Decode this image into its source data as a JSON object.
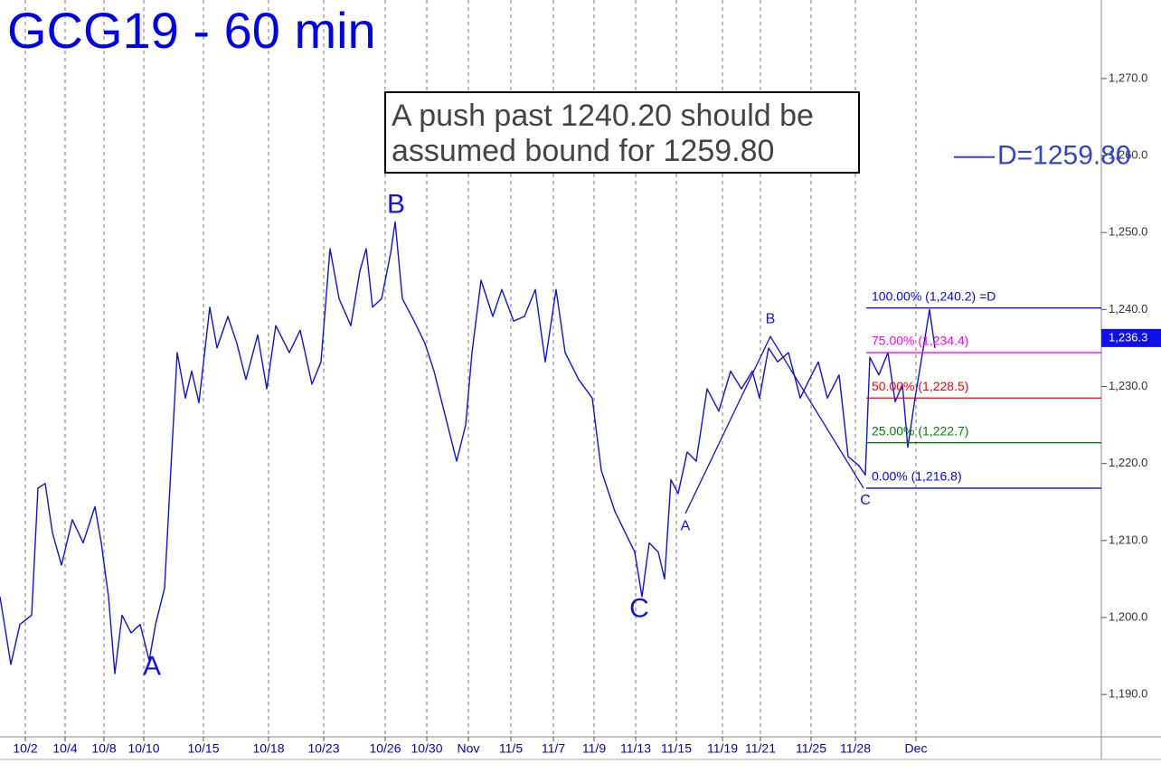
{
  "chart_data": {
    "type": "line",
    "title": "GCG19 - 60 min",
    "note": [
      "A push past 1240.20 should be",
      "assumed bound for 1259.80"
    ],
    "xlim": [
      0,
      121.8
    ],
    "ylim": [
      1184.5,
      1280.2
    ],
    "xticks": [
      {
        "value": 2.8,
        "label": "10/2"
      },
      {
        "value": 7.2,
        "label": "10/4"
      },
      {
        "value": 11.5,
        "label": "10/8"
      },
      {
        "value": 15.9,
        "label": "10/10"
      },
      {
        "value": 22.5,
        "label": "10/15"
      },
      {
        "value": 29.7,
        "label": "10/18"
      },
      {
        "value": 35.8,
        "label": "10/23"
      },
      {
        "value": 42.6,
        "label": "10/26"
      },
      {
        "value": 47.2,
        "label": "10/30"
      },
      {
        "value": 51.8,
        "label": "Nov"
      },
      {
        "value": 56.5,
        "label": "11/5"
      },
      {
        "value": 61.2,
        "label": "11/7"
      },
      {
        "value": 65.7,
        "label": "11/9"
      },
      {
        "value": 70.3,
        "label": "11/13"
      },
      {
        "value": 74.8,
        "label": "11/15"
      },
      {
        "value": 79.9,
        "label": "11/19"
      },
      {
        "value": 84.1,
        "label": "11/21"
      },
      {
        "value": 89.7,
        "label": "11/25"
      },
      {
        "value": 94.6,
        "label": "11/28"
      },
      {
        "value": 101.3,
        "label": "Dec"
      }
    ],
    "yticks": [
      {
        "value": 1190,
        "label": "1,190.0"
      },
      {
        "value": 1200,
        "label": "1,200.0"
      },
      {
        "value": 1210,
        "label": "1,210.0"
      },
      {
        "value": 1220,
        "label": "1,220.0"
      },
      {
        "value": 1230,
        "label": "1,230.0"
      },
      {
        "value": 1240,
        "label": "1,240.0"
      },
      {
        "value": 1250,
        "label": "1,250.0"
      },
      {
        "value": 1260,
        "label": "1,260.0"
      },
      {
        "value": 1270,
        "label": "1,270.0"
      }
    ],
    "grid": true,
    "series": [
      {
        "color": "#1010e8",
        "x": [
          0,
          1.2,
          2.2,
          3.5,
          4.2,
          5.0,
          5.8,
          6.8,
          8.0,
          9.2,
          10.5,
          11.2,
          12.0,
          12.7,
          13.5,
          14.5,
          15.5,
          16.5,
          17.2,
          18.2,
          19.0,
          19.6,
          20.5,
          21.2,
          22.0,
          23.2,
          24.0,
          25.2,
          26.2,
          27.2,
          28.5,
          29.5,
          30.5,
          32.0,
          33.2,
          34.5,
          35.5,
          36.5,
          37.5,
          38.8,
          39.8,
          40.5,
          41.2,
          42.2,
          43.2,
          43.7,
          44.5,
          45.8,
          47.0,
          48.0,
          49.5,
          50.5,
          51.5,
          52.2,
          53.2,
          54.5,
          55.5,
          56.8,
          58.0,
          59.2,
          60.3,
          61.5,
          62.5,
          64.0,
          65.5,
          66.5,
          68.0,
          69.2,
          70.2,
          71.0,
          71.8,
          72.8,
          73.5,
          74.2,
          75.0,
          76.0,
          77.0,
          78.2,
          79.5,
          80.8,
          82.0,
          83.2,
          84.0,
          85.0,
          86.0,
          87.2,
          88.5,
          89.5,
          90.5,
          91.5,
          92.8,
          93.8,
          95.0,
          95.7,
          96.2,
          97.2,
          98.2,
          99.0,
          99.8,
          100.4,
          101.2,
          102.2,
          102.8,
          103.4
        ],
        "values": [
          1202.7,
          1193.9,
          1199.1,
          1200.3,
          1216.8,
          1217.4,
          1211.0,
          1206.8,
          1212.7,
          1209.7,
          1214.4,
          1209.7,
          1202.7,
          1192.7,
          1200.3,
          1198.0,
          1199.1,
          1194.4,
          1199.1,
          1203.8,
          1221.5,
          1234.4,
          1228.5,
          1232.0,
          1227.9,
          1240.3,
          1235.0,
          1239.1,
          1235.6,
          1230.9,
          1236.7,
          1229.7,
          1237.9,
          1234.4,
          1237.3,
          1230.3,
          1233.2,
          1247.9,
          1241.4,
          1237.9,
          1245.0,
          1247.9,
          1240.3,
          1241.4,
          1247.3,
          1251.4,
          1241.4,
          1238.5,
          1235.6,
          1232.0,
          1225.0,
          1220.3,
          1225.0,
          1234.4,
          1243.8,
          1239.1,
          1242.6,
          1238.5,
          1239.1,
          1242.6,
          1233.2,
          1242.6,
          1234.4,
          1230.9,
          1228.5,
          1219.1,
          1213.8,
          1210.9,
          1208.5,
          1202.7,
          1209.7,
          1208.5,
          1205.0,
          1217.9,
          1216.1,
          1221.5,
          1220.3,
          1229.7,
          1226.8,
          1232.0,
          1229.7,
          1232.0,
          1228.5,
          1235.0,
          1233.2,
          1234.4,
          1228.5,
          1230.9,
          1233.2,
          1228.5,
          1231.5,
          1220.9,
          1219.7,
          1218.5,
          1233.8,
          1231.5,
          1234.4,
          1228.0,
          1230.3,
          1222.1,
          1228.5,
          1235.6,
          1240.0,
          1235.0
        ]
      }
    ],
    "pattern": {
      "color": "#1010e8",
      "x": [
        75.8,
        85.2,
        95.5
      ],
      "y": [
        1213.5,
        1236.5,
        1216.8
      ]
    },
    "levels_start": 95.8,
    "levels": [
      {
        "label": "100.00% (1,240.2) =D",
        "value": 1240.2,
        "color": "#0000ff"
      },
      {
        "label": "75.00% (1,234.4)",
        "value": 1234.4,
        "color": "#ff00ff"
      },
      {
        "label": "50.00% (1,228.5)",
        "value": 1228.5,
        "color": "#ff0000"
      },
      {
        "label": "25.00% (1,222.7)",
        "value": 1222.7,
        "color": "#008000"
      },
      {
        "label": "0.00% (1,216.8)",
        "value": 1216.8,
        "color": "#0000ff"
      }
    ],
    "target": {
      "label": "D=1259.80",
      "value": 1259.8,
      "x": [
        105.5,
        110.0
      ]
    },
    "last_price": {
      "value": 1236.3,
      "label": "1,236.3"
    },
    "annotations": [
      {
        "text": "A",
        "x": 16.8,
        "y": 1193.5,
        "size": "big"
      },
      {
        "text": "B",
        "x": 43.8,
        "y": 1253.5,
        "size": "big"
      },
      {
        "text": "C",
        "x": 70.7,
        "y": 1201.0,
        "size": "big"
      },
      {
        "text": "A",
        "x": 75.8,
        "y": 1211.8,
        "size": "small"
      },
      {
        "text": "B",
        "x": 85.2,
        "y": 1238.7,
        "size": "small"
      },
      {
        "text": "C",
        "x": 95.7,
        "y": 1215.2,
        "size": "small"
      }
    ]
  }
}
